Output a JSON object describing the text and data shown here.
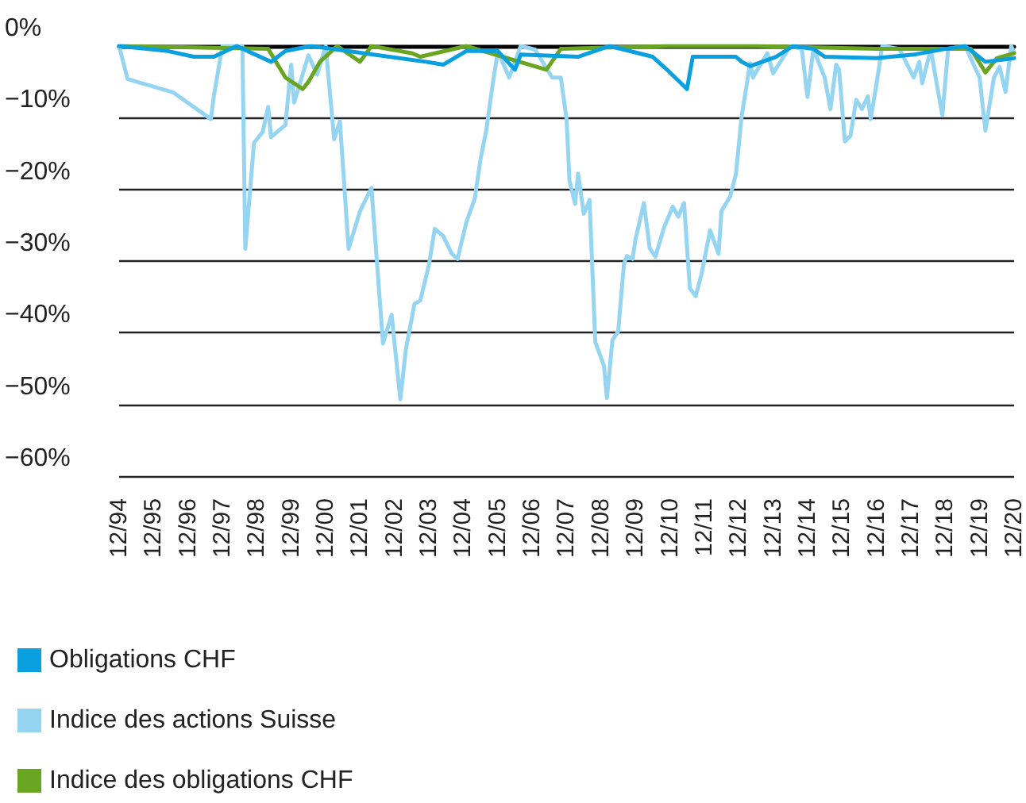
{
  "chart_data": {
    "type": "line",
    "xlim": [
      "1994-12",
      "2020-12"
    ],
    "xticks": [
      {
        "value": "1994-12",
        "label": "12/94"
      },
      {
        "value": "1995-12",
        "label": "12/95"
      },
      {
        "value": "1996-12",
        "label": "12/96"
      },
      {
        "value": "1997-12",
        "label": "12/97"
      },
      {
        "value": "1998-12",
        "label": "12/98"
      },
      {
        "value": "1999-12",
        "label": "12/99"
      },
      {
        "value": "2000-12",
        "label": "12/00"
      },
      {
        "value": "2001-12",
        "label": "12/01"
      },
      {
        "value": "2002-12",
        "label": "12/02"
      },
      {
        "value": "2003-12",
        "label": "12/03"
      },
      {
        "value": "2004-12",
        "label": "12/04"
      },
      {
        "value": "2005-12",
        "label": "12/05"
      },
      {
        "value": "2006-12",
        "label": "12/06"
      },
      {
        "value": "2007-12",
        "label": "12/07"
      },
      {
        "value": "2008-12",
        "label": "12/08"
      },
      {
        "value": "2009-12",
        "label": "12/09"
      },
      {
        "value": "2010-12",
        "label": "12/10"
      },
      {
        "value": "2011-12",
        "label": "12/11"
      },
      {
        "value": "2012-12",
        "label": "12/12"
      },
      {
        "value": "2013-12",
        "label": "12/13"
      },
      {
        "value": "2014-12",
        "label": "12/14"
      },
      {
        "value": "2015-12",
        "label": "12/15"
      },
      {
        "value": "2016-12",
        "label": "12/16"
      },
      {
        "value": "2017-12",
        "label": "12/17"
      },
      {
        "value": "2018-12",
        "label": "12/18"
      },
      {
        "value": "2019-12",
        "label": "12/19"
      },
      {
        "value": "2020-12",
        "label": "12/20"
      }
    ],
    "ylim": [
      -60,
      0
    ],
    "yticks": [
      {
        "value": 0,
        "label": "0%"
      },
      {
        "value": -10,
        "label": "−10%"
      },
      {
        "value": -20,
        "label": "−20%"
      },
      {
        "value": -30,
        "label": "−30%"
      },
      {
        "value": -40,
        "label": "−40%"
      },
      {
        "value": -50,
        "label": "−50%"
      },
      {
        "value": -60,
        "label": "−60%"
      }
    ],
    "grid": "y",
    "legend": "bottom left",
    "marker": "none",
    "line_style": "solid",
    "series": [
      {
        "name": "Obligations CHF",
        "color": "#0a9fdf",
        "x": [
          "1994-12",
          "1996-05",
          "1997-02",
          "1997-09",
          "1998-05",
          "1999-05",
          "1999-10",
          "2000-07",
          "2003-11",
          "2004-05",
          "2005-01",
          "2005-12",
          "2006-06",
          "2006-08",
          "2008-04",
          "2009-03",
          "2010-06",
          "2010-11",
          "2011-06",
          "2011-08",
          "2012-11",
          "2013-01",
          "2013-04",
          "2014-01",
          "2014-07",
          "2015-02",
          "2015-06",
          "2016-12",
          "2018-01",
          "2018-12",
          "2019-07",
          "2020-02",
          "2020-12"
        ],
        "values": [
          0,
          -0.7,
          -1.5,
          -1.5,
          0,
          -2.2,
          -0.7,
          0,
          -2.2,
          -2.6,
          -0.7,
          -0.7,
          -3.3,
          -1.2,
          -1.5,
          0,
          -1.5,
          -3.3,
          -6,
          -1.5,
          -1.5,
          -2.2,
          -2.8,
          -1.5,
          0,
          -0.4,
          -1.5,
          -1.7,
          -1.2,
          -0.4,
          0,
          -2.2,
          -1.7
        ]
      },
      {
        "name": "Indice des actions Suisse",
        "color": "#95d5f2",
        "x": [
          "1994-12",
          "1995-03",
          "1996-07",
          "1997-08",
          "1997-09",
          "1997-12",
          "1998-07",
          "1998-08",
          "1998-11",
          "1999-02",
          "1999-04",
          "1999-05",
          "1999-10",
          "1999-12",
          "2000-01",
          "2000-06",
          "2000-09",
          "2000-12",
          "2001-03",
          "2001-05",
          "2001-08",
          "2001-12",
          "2002-04",
          "2002-07",
          "2002-08",
          "2002-11",
          "2003-02",
          "2003-04",
          "2003-07",
          "2003-09",
          "2003-12",
          "2004-02",
          "2004-05",
          "2004-08",
          "2004-10",
          "2005-01",
          "2005-04",
          "2005-06",
          "2005-08",
          "2005-10",
          "2005-12",
          "2006-04",
          "2006-08",
          "2007-01",
          "2007-07",
          "2007-10",
          "2007-12",
          "2008-01",
          "2008-03",
          "2008-04",
          "2008-06",
          "2008-08",
          "2008-10",
          "2009-01",
          "2009-02",
          "2009-04",
          "2009-06",
          "2009-08",
          "2009-09",
          "2009-11",
          "2009-12",
          "2010-03",
          "2010-05",
          "2010-07",
          "2010-10",
          "2011-01",
          "2011-03",
          "2011-05",
          "2011-07",
          "2011-09",
          "2011-11",
          "2012-02",
          "2012-05",
          "2012-06",
          "2012-09",
          "2012-11",
          "2013-01",
          "2013-04",
          "2013-05",
          "2013-07",
          "2013-10",
          "2013-12",
          "2014-06",
          "2014-10",
          "2014-12",
          "2015-02",
          "2015-06",
          "2015-08",
          "2015-10",
          "2015-11",
          "2016-01",
          "2016-03",
          "2016-05",
          "2016-07",
          "2016-09",
          "2016-10",
          "2016-12",
          "2017-02",
          "2017-08",
          "2018-01",
          "2018-03",
          "2018-04",
          "2018-07",
          "2018-09",
          "2018-11",
          "2019-01",
          "2019-07",
          "2019-12",
          "2020-02",
          "2020-05",
          "2020-07",
          "2020-09",
          "2020-11",
          "2020-12"
        ],
        "values": [
          0,
          -4.6,
          -6.5,
          -10.2,
          -7,
          0,
          0,
          -28.3,
          -13.5,
          -12,
          -8.5,
          -12.7,
          -11,
          -2.6,
          -7.9,
          -1.3,
          -4,
          0,
          -13,
          -10.5,
          -28.3,
          -23,
          -19.8,
          -36,
          -41.5,
          -37.5,
          -49.3,
          -42.3,
          -36,
          -35.5,
          -30.6,
          -25.5,
          -26.5,
          -29,
          -29.7,
          -24.6,
          -21.3,
          -15.8,
          -11.8,
          -6,
          -0.7,
          -4.4,
          0,
          -0.5,
          -4.4,
          -4.4,
          -10.2,
          -18.8,
          -22,
          -17.8,
          -23.4,
          -21.5,
          -41.3,
          -44.6,
          -49.1,
          -41,
          -39.8,
          -30.4,
          -29.3,
          -29.7,
          -27,
          -21.9,
          -28.2,
          -29.4,
          -25.3,
          -22.4,
          -23.8,
          -21.9,
          -33.8,
          -34.9,
          -31.9,
          -25.7,
          -29,
          -23,
          -21,
          -17.9,
          -9.8,
          -2.4,
          -4.4,
          -3,
          -1,
          -3.8,
          0,
          -0.4,
          -7.1,
          -0.4,
          -4.4,
          -8.8,
          -2.6,
          -3.3,
          -13.3,
          -12.5,
          -7.5,
          -8.8,
          -7,
          -10.2,
          -5.4,
          0,
          -0.4,
          -4.4,
          -2.2,
          -5.2,
          -0.4,
          -5.2,
          -9.7,
          -0.4,
          0,
          -4.4,
          -11.8,
          -4.4,
          -2.9,
          -6.4,
          0,
          -1
        ]
      },
      {
        "name": "Indice des obligations CHF",
        "color": "#6aa521",
        "x": [
          "1994-12",
          "1999-04",
          "1999-10",
          "2000-04",
          "2000-06",
          "2000-10",
          "2001-04",
          "2001-12",
          "2002-04",
          "2003-06",
          "2003-09",
          "2005-01",
          "2007-05",
          "2007-10",
          "2010-11",
          "2013-06",
          "2016-12",
          "2019-09",
          "2020-02",
          "2020-06",
          "2020-12"
        ],
        "values": [
          0,
          -0.4,
          -4.4,
          -6,
          -5,
          -2.2,
          0,
          -2.2,
          0,
          -1,
          -1.5,
          0,
          -3.3,
          -0.4,
          0,
          0,
          -0.4,
          -0.4,
          -3.7,
          -1.7,
          -1
        ]
      }
    ]
  }
}
